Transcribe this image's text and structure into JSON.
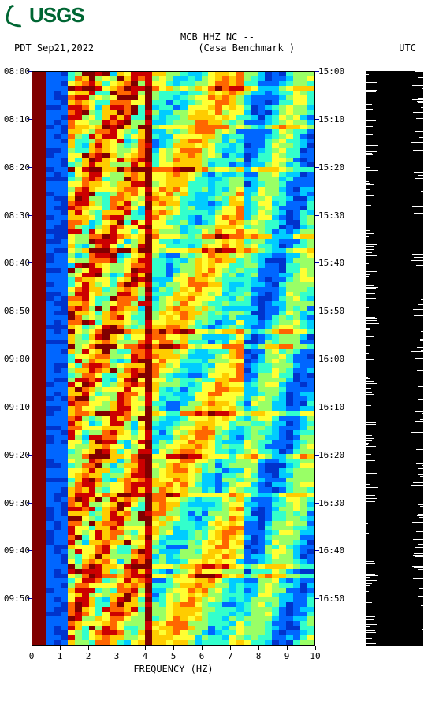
{
  "logo_text": "USGS",
  "header": {
    "line1": "MCB HHZ NC --",
    "left": "PDT  Sep21,2022",
    "center": "(Casa Benchmark )",
    "right": "UTC"
  },
  "chart": {
    "type": "heatmap",
    "background_color": "#ffffff",
    "axis_color": "#0000aa",
    "x": {
      "label": "FREQUENCY (HZ)",
      "min": 0,
      "max": 10,
      "tick_step": 1,
      "ticks": [
        "0",
        "1",
        "2",
        "3",
        "4",
        "5",
        "6",
        "7",
        "8",
        "9",
        "10"
      ],
      "label_fontsize": 12,
      "tick_fontsize": 11
    },
    "y_left": {
      "ticks": [
        "08:00",
        "08:10",
        "08:20",
        "08:30",
        "08:40",
        "08:50",
        "09:00",
        "09:10",
        "09:20",
        "09:30",
        "09:40",
        "09:50"
      ],
      "n_intervals": 12,
      "tick_fontsize": 11
    },
    "y_right": {
      "ticks": [
        "15:00",
        "15:10",
        "15:20",
        "15:30",
        "15:40",
        "15:50",
        "16:00",
        "16:10",
        "16:20",
        "16:30",
        "16:40",
        "16:50"
      ],
      "n_intervals": 12,
      "tick_fontsize": 11
    },
    "colormap": [
      "#000099",
      "#0033cc",
      "#0066ff",
      "#00ccff",
      "#33ffcc",
      "#99ff66",
      "#ffff33",
      "#ffcc00",
      "#ff6600",
      "#cc0000",
      "#800000"
    ],
    "grid_cols": 40,
    "grid_rows": 120
  },
  "sidebar": {
    "background": "#000000",
    "noise_color": "#ffffff"
  }
}
